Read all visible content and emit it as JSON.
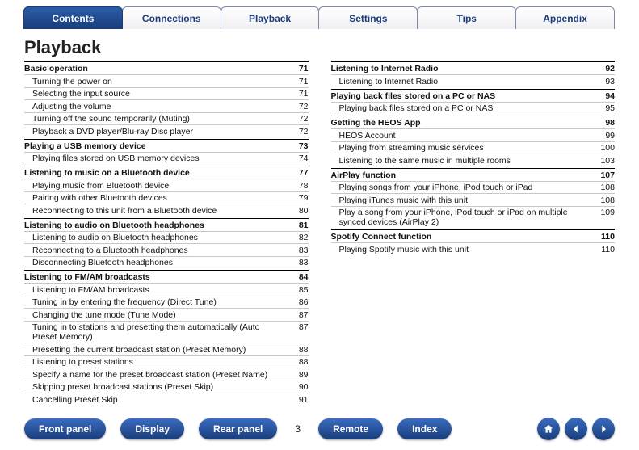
{
  "tabs": [
    {
      "label": "Contents",
      "active": true
    },
    {
      "label": "Connections",
      "active": false
    },
    {
      "label": "Playback",
      "active": false
    },
    {
      "label": "Settings",
      "active": false
    },
    {
      "label": "Tips",
      "active": false
    },
    {
      "label": "Appendix",
      "active": false
    }
  ],
  "title": "Playback",
  "page_number": "3",
  "left_col": [
    {
      "type": "section",
      "label": "Basic operation",
      "page": "71"
    },
    {
      "type": "item",
      "label": "Turning the power on",
      "page": "71"
    },
    {
      "type": "item",
      "label": "Selecting the input source",
      "page": "71"
    },
    {
      "type": "item",
      "label": "Adjusting the volume",
      "page": "72"
    },
    {
      "type": "item",
      "label": "Turning off the sound temporarily (Muting)",
      "page": "72"
    },
    {
      "type": "item",
      "label": "Playback a DVD player/Blu-ray Disc player",
      "page": "72"
    },
    {
      "type": "section",
      "label": "Playing a USB memory device",
      "page": "73"
    },
    {
      "type": "item",
      "label": "Playing files stored on USB memory devices",
      "page": "74"
    },
    {
      "type": "section",
      "label": "Listening to music on a Bluetooth device",
      "page": "77"
    },
    {
      "type": "item",
      "label": "Playing music from Bluetooth device",
      "page": "78"
    },
    {
      "type": "item",
      "label": "Pairing with other Bluetooth devices",
      "page": "79"
    },
    {
      "type": "item",
      "label": "Reconnecting to this unit from a Bluetooth device",
      "page": "80"
    },
    {
      "type": "section",
      "label": "Listening to audio on Bluetooth headphones",
      "page": "81"
    },
    {
      "type": "item",
      "label": "Listening to audio on Bluetooth headphones",
      "page": "82"
    },
    {
      "type": "item",
      "label": "Reconnecting to a Bluetooth headphones",
      "page": "83"
    },
    {
      "type": "item",
      "label": "Disconnecting Bluetooth headphones",
      "page": "83"
    },
    {
      "type": "section",
      "label": "Listening to FM/AM broadcasts",
      "page": "84"
    },
    {
      "type": "item",
      "label": "Listening to FM/AM broadcasts",
      "page": "85"
    },
    {
      "type": "item",
      "label": "Tuning in by entering the frequency (Direct Tune)",
      "page": "86"
    },
    {
      "type": "item",
      "label": "Changing the tune mode (Tune Mode)",
      "page": "87"
    },
    {
      "type": "item",
      "label": "Tuning in to stations and presetting them automatically (Auto Preset Memory)",
      "page": "87"
    },
    {
      "type": "item",
      "label": "Presetting the current broadcast station (Preset Memory)",
      "page": "88"
    },
    {
      "type": "item",
      "label": "Listening to preset stations",
      "page": "88"
    },
    {
      "type": "item",
      "label": "Specify a name for the preset broadcast station (Preset Name)",
      "page": "89"
    },
    {
      "type": "item",
      "label": "Skipping preset broadcast stations (Preset Skip)",
      "page": "90"
    },
    {
      "type": "item",
      "label": "Cancelling Preset Skip",
      "page": "91"
    }
  ],
  "right_col": [
    {
      "type": "section",
      "label": "Listening to Internet Radio",
      "page": "92"
    },
    {
      "type": "item",
      "label": "Listening to Internet Radio",
      "page": "93"
    },
    {
      "type": "section",
      "label": "Playing back files stored on a PC or NAS",
      "page": "94"
    },
    {
      "type": "item",
      "label": "Playing back files stored on a PC or NAS",
      "page": "95"
    },
    {
      "type": "section",
      "label": "Getting the HEOS App",
      "page": "98"
    },
    {
      "type": "item",
      "label": "HEOS Account",
      "page": "99"
    },
    {
      "type": "item",
      "label": "Playing from streaming music services",
      "page": "100"
    },
    {
      "type": "item",
      "label": "Listening to the same music in multiple rooms",
      "page": "103"
    },
    {
      "type": "section",
      "label": "AirPlay function",
      "page": "107"
    },
    {
      "type": "item",
      "label": "Playing songs from your iPhone, iPod touch or iPad",
      "page": "108"
    },
    {
      "type": "item",
      "label": "Playing iTunes music with this unit",
      "page": "108"
    },
    {
      "type": "item",
      "label": "Play a song from your iPhone, iPod touch or iPad on multiple synced devices (AirPlay 2)",
      "page": "109"
    },
    {
      "type": "section",
      "label": "Spotify Connect function",
      "page": "110"
    },
    {
      "type": "item",
      "label": "Playing Spotify music with this unit",
      "page": "110"
    }
  ],
  "bottom_nav": {
    "buttons": [
      "Front panel",
      "Display",
      "Rear panel",
      "Remote",
      "Index"
    ]
  },
  "colors": {
    "accent": "#1a3d7a",
    "tab_border": "#7a8aa8",
    "divider": "#c8c8c8"
  }
}
